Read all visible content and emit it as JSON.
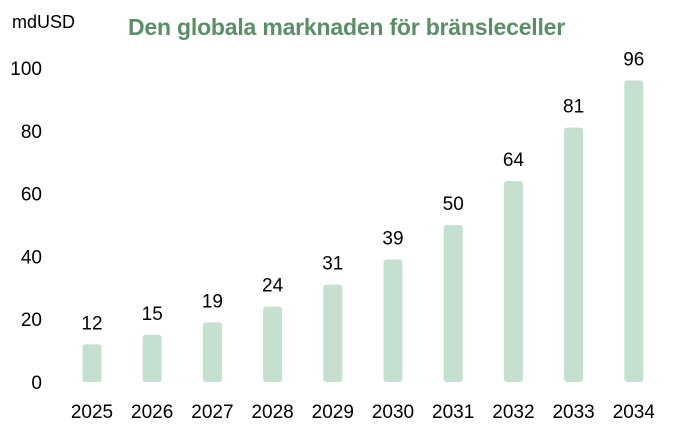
{
  "chart_data": {
    "type": "bar",
    "title": "Den globala marknaden för bränsleceller",
    "ylabel": "mdUSD",
    "xlabel": "",
    "categories": [
      "2025",
      "2026",
      "2027",
      "2028",
      "2029",
      "2030",
      "2031",
      "2032",
      "2033",
      "2034"
    ],
    "values": [
      12,
      15,
      19,
      24,
      31,
      39,
      50,
      64,
      81,
      96
    ],
    "ylim": [
      0,
      100
    ],
    "yticks": [
      "0",
      "20",
      "40",
      "60",
      "80",
      "100"
    ],
    "data_labels": true,
    "grid": false,
    "legend": "none",
    "bar_color": "#c5e0cf",
    "title_color": "#5a8f66"
  }
}
